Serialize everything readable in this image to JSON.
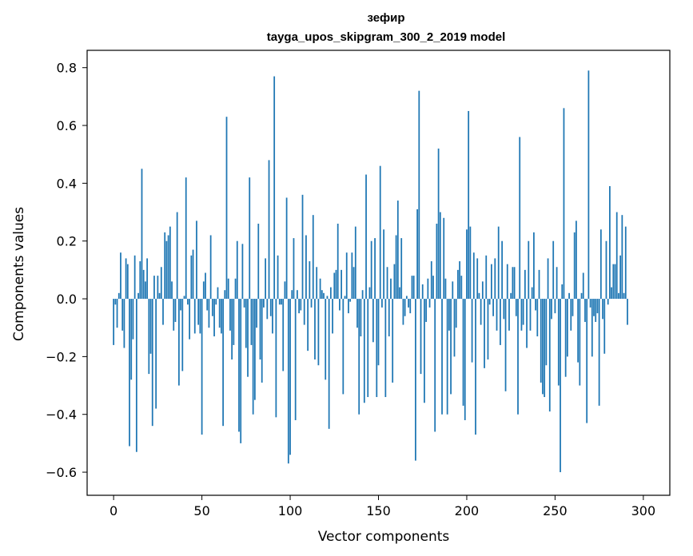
{
  "chart_data": {
    "type": "bar",
    "title": "зефир",
    "subtitle": "tayga_upos_skipgram_300_2_2019 model",
    "xlabel": "Vector components",
    "ylabel": "Components values",
    "xlim": [
      -15,
      315
    ],
    "ylim": [
      -0.68,
      0.86
    ],
    "xticks": [
      0,
      50,
      100,
      150,
      200,
      250,
      300
    ],
    "yticks": [
      -0.6,
      -0.4,
      -0.2,
      0.0,
      0.2,
      0.4,
      0.6,
      0.8
    ],
    "xtick_labels": [
      "0",
      "50",
      "100",
      "150",
      "200",
      "250",
      "300"
    ],
    "ytick_labels": [
      "−0.6",
      "−0.4",
      "−0.2",
      "0.0",
      "0.2",
      "0.4",
      "0.6",
      "0.8"
    ],
    "bar_color": "#1f77b4",
    "grid": false,
    "values": [
      -0.16,
      -0.02,
      -0.1,
      0.02,
      0.16,
      -0.11,
      -0.17,
      0.14,
      0.12,
      -0.51,
      -0.28,
      -0.14,
      0.15,
      -0.53,
      0.02,
      0.13,
      0.45,
      0.1,
      0.06,
      0.14,
      -0.26,
      -0.19,
      -0.44,
      0.08,
      -0.38,
      0.08,
      0.02,
      0.11,
      -0.09,
      0.23,
      0.2,
      0.22,
      0.25,
      0.06,
      -0.11,
      -0.08,
      0.3,
      -0.3,
      -0.04,
      -0.25,
      0.01,
      0.42,
      -0.02,
      -0.14,
      0.15,
      0.17,
      -0.12,
      0.27,
      -0.09,
      -0.12,
      -0.47,
      0.06,
      0.09,
      -0.04,
      -0.1,
      0.22,
      -0.06,
      -0.13,
      -0.02,
      0.04,
      -0.1,
      -0.12,
      -0.44,
      0.03,
      0.63,
      0.07,
      -0.11,
      -0.21,
      -0.16,
      0.07,
      0.2,
      -0.46,
      -0.5,
      0.19,
      -0.03,
      -0.17,
      -0.27,
      0.42,
      -0.16,
      -0.4,
      -0.35,
      -0.1,
      0.26,
      -0.21,
      -0.29,
      -0.03,
      0.14,
      -0.07,
      0.48,
      -0.06,
      -0.12,
      0.77,
      -0.41,
      0.15,
      -0.02,
      -0.02,
      -0.25,
      0.06,
      0.35,
      -0.57,
      -0.54,
      0.03,
      0.21,
      -0.42,
      0.03,
      -0.05,
      -0.04,
      0.36,
      -0.09,
      0.22,
      -0.18,
      0.13,
      -0.03,
      0.29,
      -0.21,
      0.11,
      -0.23,
      0.07,
      0.03,
      0.02,
      -0.28,
      0.01,
      -0.45,
      0.04,
      -0.12,
      0.09,
      0.1,
      0.26,
      -0.04,
      0.1,
      -0.33,
      0.01,
      0.16,
      -0.05,
      -0.01,
      0.16,
      0.11,
      0.25,
      -0.1,
      -0.4,
      -0.13,
      0.03,
      -0.36,
      0.43,
      -0.34,
      0.04,
      0.2,
      -0.15,
      0.21,
      -0.34,
      -0.23,
      0.46,
      -0.03,
      0.24,
      -0.34,
      0.11,
      -0.13,
      0.07,
      -0.29,
      0.12,
      0.22,
      0.34,
      0.04,
      0.21,
      -0.09,
      -0.06,
      0.01,
      -0.03,
      -0.05,
      0.08,
      0.08,
      -0.56,
      0.31,
      0.72,
      -0.26,
      0.05,
      -0.36,
      -0.08,
      0.07,
      -0.03,
      0.13,
      0.08,
      -0.46,
      0.26,
      0.52,
      0.3,
      -0.4,
      0.28,
      0.07,
      -0.4,
      -0.11,
      -0.33,
      0.06,
      -0.2,
      -0.1,
      0.1,
      0.13,
      0.08,
      -0.37,
      -0.42,
      0.24,
      0.65,
      0.25,
      -0.22,
      0.16,
      -0.47,
      0.14,
      0.02,
      -0.09,
      0.06,
      -0.24,
      0.15,
      -0.21,
      -0.02,
      0.12,
      -0.06,
      0.14,
      -0.11,
      0.25,
      -0.16,
      0.2,
      -0.07,
      -0.32,
      0.12,
      -0.11,
      0.02,
      0.11,
      0.11,
      -0.06,
      -0.4,
      0.56,
      -0.11,
      -0.09,
      0.1,
      -0.17,
      0.2,
      -0.11,
      0.04,
      0.23,
      -0.04,
      -0.13,
      0.1,
      -0.29,
      -0.33,
      -0.34,
      -0.23,
      0.14,
      -0.39,
      -0.07,
      0.2,
      -0.05,
      0.11,
      -0.3,
      -0.6,
      0.05,
      0.66,
      -0.27,
      -0.2,
      0.02,
      -0.11,
      -0.06,
      0.23,
      0.27,
      -0.22,
      -0.3,
      0.02,
      0.09,
      -0.08,
      -0.43,
      0.79,
      -0.03,
      -0.2,
      -0.06,
      -0.08,
      -0.05,
      -0.37,
      0.24,
      -0.07,
      -0.19,
      0.2,
      -0.02,
      0.39,
      0.04,
      0.12,
      0.12,
      0.3,
      0.02,
      0.15,
      0.29,
      0.02,
      0.25,
      -0.09
    ]
  }
}
